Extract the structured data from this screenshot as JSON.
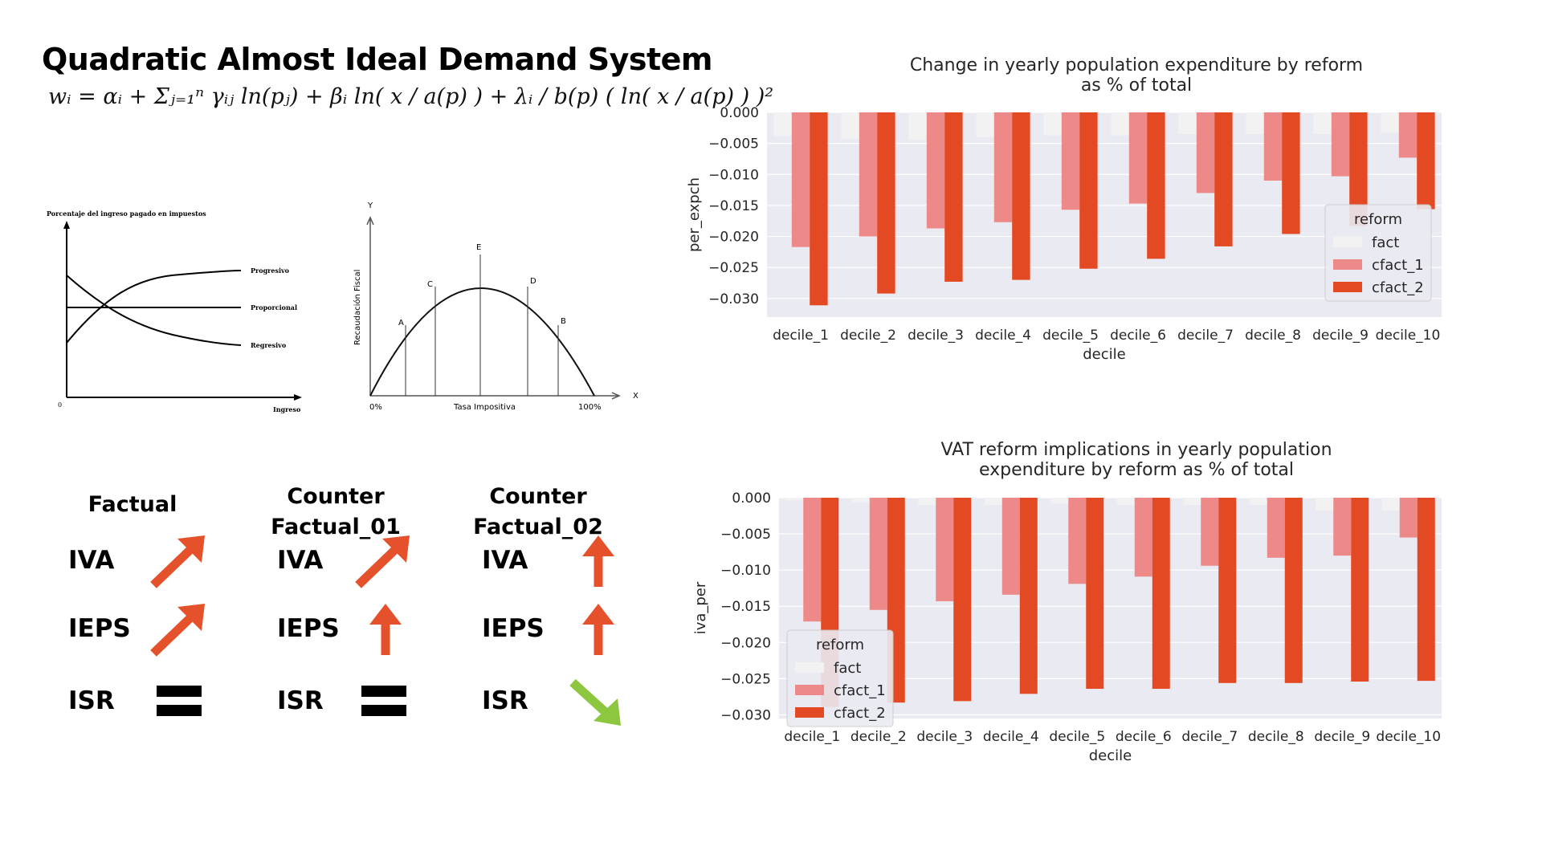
{
  "left": {
    "title": "Quadratic Almost Ideal Demand System",
    "formula": "wᵢ = αᵢ + Σⱼ₌₁ⁿ γᵢⱼ ln(pⱼ) + βᵢ ln( x / a(p) ) + λᵢ / b(p) ( ln( x / a(p) ) )²",
    "tax_chart": {
      "title": "Porcentaje del ingreso pagado en impuestos",
      "xlabel": "Ingreso",
      "origin": "0",
      "lines": [
        "Progresivo",
        "Proporcional",
        "Regresivo"
      ]
    },
    "laffer_chart": {
      "ylabel": "Recaudación Fiscal",
      "xlabel": "Tasa Impositiva",
      "y_axis": "Y",
      "x_axis": "X",
      "x_min": "0%",
      "x_max": "100%",
      "points": [
        "A",
        "C",
        "E",
        "D",
        "B"
      ]
    },
    "scenarios": [
      {
        "title": "Factual",
        "rows": [
          {
            "label": "IVA",
            "icon": "arrow-up-right-icon",
            "color": "#e4512a"
          },
          {
            "label": "IEPS",
            "icon": "arrow-up-right-icon",
            "color": "#e4512a"
          },
          {
            "label": "ISR",
            "icon": "equals-icon",
            "color": "#000000"
          }
        ]
      },
      {
        "title": "Counter\nFactual_01",
        "rows": [
          {
            "label": "IVA",
            "icon": "arrow-up-right-icon",
            "color": "#e4512a"
          },
          {
            "label": "IEPS",
            "icon": "arrow-up-icon",
            "color": "#e4512a"
          },
          {
            "label": "ISR",
            "icon": "equals-icon",
            "color": "#000000"
          }
        ]
      },
      {
        "title": "Counter\nFactual_02",
        "rows": [
          {
            "label": "IVA",
            "icon": "arrow-up-icon",
            "color": "#e4512a"
          },
          {
            "label": "IEPS",
            "icon": "arrow-up-icon",
            "color": "#e4512a"
          },
          {
            "label": "ISR",
            "icon": "arrow-down-right-icon",
            "color": "#8dc63f"
          }
        ]
      }
    ]
  },
  "chart_data": [
    {
      "type": "bar",
      "title": "Change in yearly population expenditure by reform\nas % of total",
      "xlabel": "decile",
      "ylabel": "per_expch",
      "categories": [
        "decile_1",
        "decile_2",
        "decile_3",
        "decile_4",
        "decile_5",
        "decile_6",
        "decile_7",
        "decile_8",
        "decile_9",
        "decile_10"
      ],
      "ylim": [
        -0.033,
        0.0
      ],
      "yticks": [
        "0.000",
        "−0.005",
        "−0.010",
        "−0.015",
        "−0.020",
        "−0.025",
        "−0.030"
      ],
      "ytick_values": [
        0.0,
        -0.005,
        -0.01,
        -0.015,
        -0.02,
        -0.025,
        -0.03
      ],
      "legend_title": "reform",
      "legend_position": "right",
      "series": [
        {
          "name": "fact",
          "color": "#f2f2f2",
          "values": [
            -0.0038,
            -0.0043,
            -0.0045,
            -0.004,
            -0.0037,
            -0.0037,
            -0.0035,
            -0.0035,
            -0.0035,
            -0.0033
          ]
        },
        {
          "name": "cfact_1",
          "color": "#ed8a89",
          "values": [
            -0.0217,
            -0.02,
            -0.0187,
            -0.0177,
            -0.0157,
            -0.0147,
            -0.013,
            -0.011,
            -0.0103,
            -0.0073
          ]
        },
        {
          "name": "cfact_2",
          "color": "#e34a23",
          "values": [
            -0.0311,
            -0.0292,
            -0.0273,
            -0.027,
            -0.0252,
            -0.0236,
            -0.0216,
            -0.0196,
            -0.0183,
            -0.0156
          ]
        }
      ]
    },
    {
      "type": "bar",
      "title": "VAT reform implications in yearly population\nexpenditure by reform as % of total",
      "xlabel": "decile",
      "ylabel": "iva_per",
      "categories": [
        "decile_1",
        "decile_2",
        "decile_3",
        "decile_4",
        "decile_5",
        "decile_6",
        "decile_7",
        "decile_8",
        "decile_9",
        "decile_10"
      ],
      "ylim": [
        -0.0305,
        0.0
      ],
      "yticks": [
        "0.000",
        "−0.005",
        "−0.010",
        "−0.015",
        "−0.020",
        "−0.025",
        "−0.030"
      ],
      "ytick_values": [
        0.0,
        -0.005,
        -0.01,
        -0.015,
        -0.02,
        -0.025,
        -0.03
      ],
      "legend_title": "reform",
      "legend_position": "left",
      "series": [
        {
          "name": "fact",
          "color": "#f2f2f2",
          "values": [
            -0.0004,
            -0.0006,
            -0.001,
            -0.001,
            -0.0008,
            -0.001,
            -0.001,
            -0.001,
            -0.0018,
            -0.0018
          ]
        },
        {
          "name": "cfact_1",
          "color": "#ed8a89",
          "values": [
            -0.0171,
            -0.0155,
            -0.0143,
            -0.0134,
            -0.0119,
            -0.0109,
            -0.0094,
            -0.0083,
            -0.008,
            -0.0055
          ]
        },
        {
          "name": "cfact_2",
          "color": "#e34a23",
          "values": [
            -0.0289,
            -0.0283,
            -0.0281,
            -0.0271,
            -0.0264,
            -0.0264,
            -0.0256,
            -0.0256,
            -0.0254,
            -0.0253
          ]
        }
      ]
    }
  ]
}
